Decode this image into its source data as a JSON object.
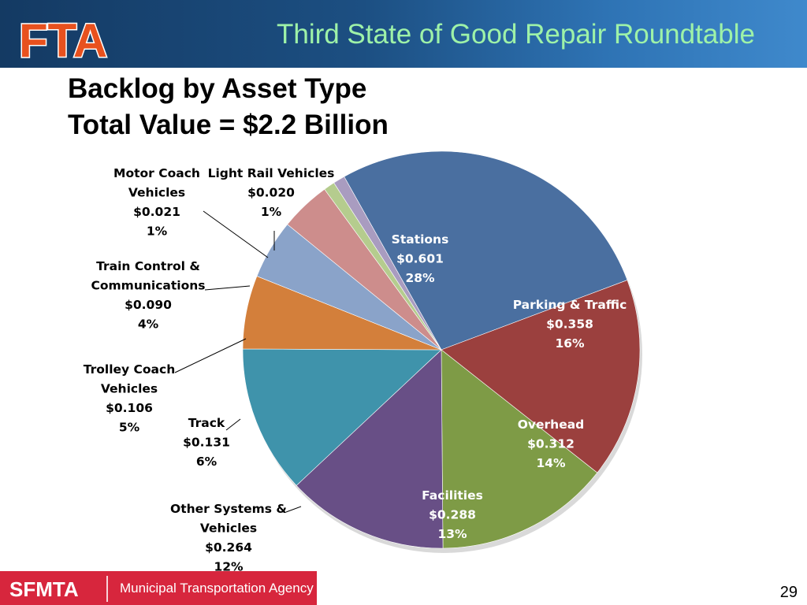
{
  "header": {
    "logo_text": "FTA",
    "title": "Third State of Good Repair Roundtable",
    "background_color": "#1c4f82",
    "title_color": "#9ef2a8"
  },
  "slide": {
    "title_line1": "Backlog by Asset Type",
    "title_line2": "Total Value = $2.2 Billion"
  },
  "footer": {
    "logo_text": "SFMTA",
    "agency_name": "Municipal Transportation Agency",
    "bar_color": "#d7263d",
    "page_number": "29"
  },
  "chart_data": {
    "type": "pie",
    "title": "",
    "units": "$ Billion",
    "slices": [
      {
        "name": "Stations",
        "value": 0.601,
        "percent": "28%",
        "color": "#4a6fa0"
      },
      {
        "name": "Parking & Traffic",
        "value": 0.358,
        "percent": "16%",
        "color": "#9b403e"
      },
      {
        "name": "Overhead",
        "value": 0.312,
        "percent": "14%",
        "color": "#7e9b46"
      },
      {
        "name": "Facilities",
        "value": 0.288,
        "percent": "13%",
        "color": "#684f86"
      },
      {
        "name": "Other Systems & Vehicles",
        "value": 0.264,
        "percent": "12%",
        "color": "#3f93ab"
      },
      {
        "name": "Track",
        "value": 0.131,
        "percent": "6%",
        "color": "#d37f3b"
      },
      {
        "name": "Trolley Coach Vehicles",
        "value": 0.106,
        "percent": "5%",
        "color": "#8aa3c9"
      },
      {
        "name": "Train Control & Communications",
        "value": 0.09,
        "percent": "4%",
        "color": "#cd8d8c"
      },
      {
        "name": "Light Rail Vehicles",
        "value": 0.02,
        "percent": "1%",
        "color": "#b5cc8e"
      },
      {
        "name": "Motor Coach Vehicles",
        "value": 0.021,
        "percent": "1%",
        "color": "#a99cc0"
      }
    ],
    "labels": [
      {
        "lines": [
          "Stations",
          "$0.601",
          "28%"
        ],
        "color": "#ffffff"
      },
      {
        "lines": [
          "Parking & Traffic",
          "$0.358",
          "16%"
        ],
        "color": "#ffffff"
      },
      {
        "lines": [
          "Overhead",
          "$0.312",
          "14%"
        ],
        "color": "#ffffff"
      },
      {
        "lines": [
          "Facilities",
          "$0.288",
          "13%"
        ],
        "color": "#ffffff"
      },
      {
        "lines": [
          "Other Systems &",
          "Vehicles",
          "$0.264",
          "12%"
        ],
        "color": "#000000"
      },
      {
        "lines": [
          "Track",
          "$0.131",
          "6%"
        ],
        "color": "#000000"
      },
      {
        "lines": [
          "Trolley Coach",
          "Vehicles",
          "$0.106",
          "5%"
        ],
        "color": "#000000"
      },
      {
        "lines": [
          "Train Control &",
          "Communications",
          "$0.090",
          "4%"
        ],
        "color": "#000000"
      },
      {
        "lines": [
          "Light Rail Vehicles",
          "$0.020",
          "1%"
        ],
        "color": "#000000"
      },
      {
        "lines": [
          "Motor Coach",
          "Vehicles",
          "$0.021",
          "1%"
        ],
        "color": "#000000"
      }
    ]
  }
}
